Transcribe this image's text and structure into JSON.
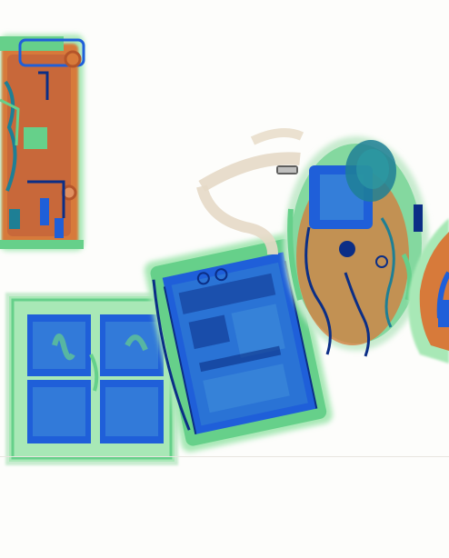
{
  "scan": {
    "kind": "x-ray baggage scan",
    "palette": {
      "background": "#fdfdfb",
      "organic": "#d77a3a",
      "organic_dark": "#b4552a",
      "inorganic": "#66d08a",
      "inorganic_light": "#a8e8b6",
      "metal": "#1f5fd9",
      "metal_dark": "#0b2e86",
      "teal": "#1e7f95",
      "strap": "#e6d9c6"
    },
    "objects": [
      {
        "name": "suitcase-top-left",
        "material": "organic"
      },
      {
        "name": "tray-with-blocks",
        "material": "inorganic"
      },
      {
        "name": "laptop-bag",
        "material": "metal"
      },
      {
        "name": "backpack",
        "material": "organic"
      },
      {
        "name": "bag-partial-right",
        "material": "organic"
      }
    ]
  }
}
